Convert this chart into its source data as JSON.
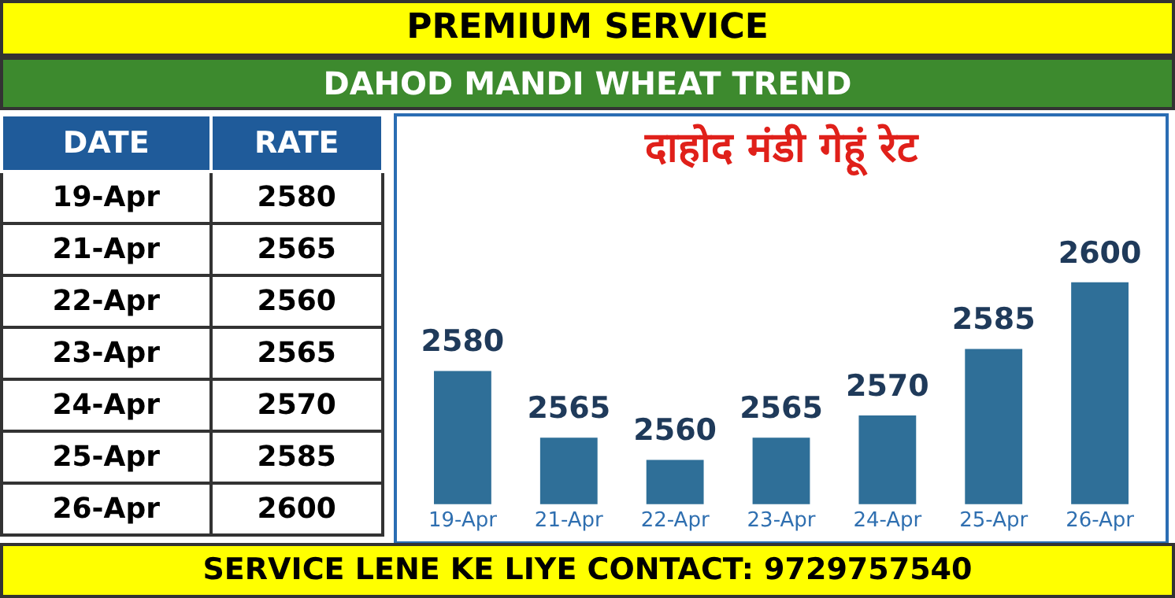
{
  "chart_data": [
    {
      "type": "other",
      "annotations": [
        "DATE",
        "RATE"
      ],
      "categories": [
        "19-Apr",
        "21-Apr",
        "22-Apr",
        "23-Apr",
        "24-Apr",
        "25-Apr",
        "26-Apr"
      ],
      "values": [
        2580,
        2565,
        2560,
        2565,
        2570,
        2585,
        2600
      ],
      "data_labels": true
    },
    {
      "type": "bar",
      "title": "दाहोद मंडी गेहूं रेट",
      "categories": [
        "19-Apr",
        "21-Apr",
        "22-Apr",
        "23-Apr",
        "24-Apr",
        "25-Apr",
        "26-Apr"
      ],
      "values": [
        2580,
        2565,
        2560,
        2565,
        2570,
        2585,
        2600
      ],
      "color": "#2f6f98",
      "tick_labels": "x",
      "data_labels": true,
      "annotations": [
        "PREMIUM SERVICE",
        "DAHOD MANDI WHEAT TREND",
        "SERVICE LENE KE LIYE CONTACT: 9729757540"
      ]
    }
  ]
}
